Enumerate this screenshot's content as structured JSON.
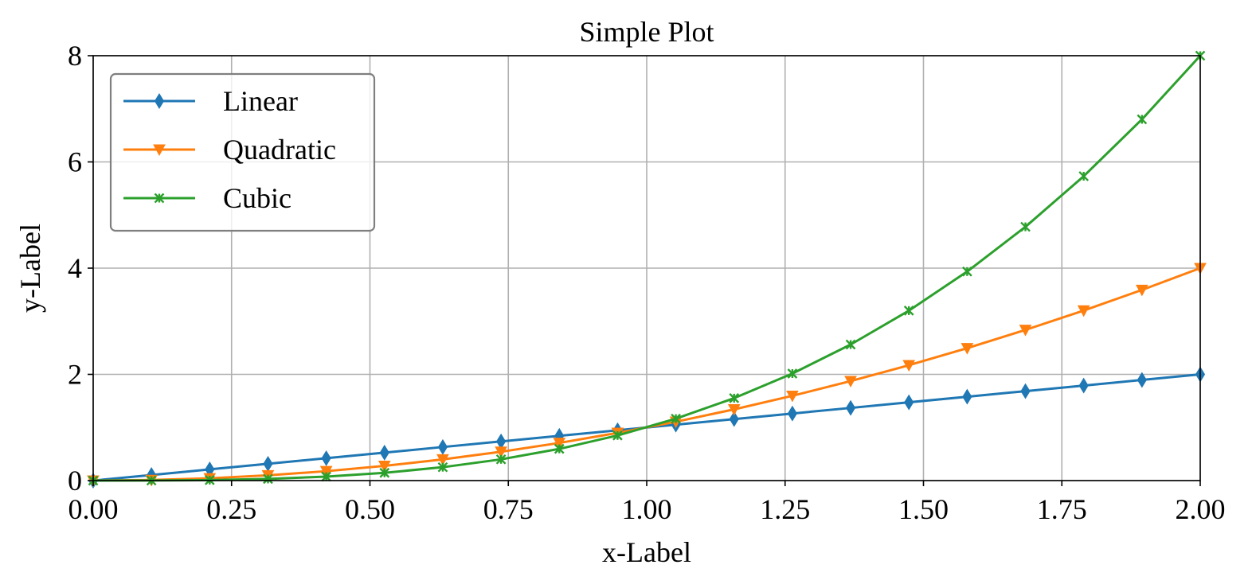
{
  "chart_data": {
    "type": "line",
    "title": "Simple Plot",
    "xlabel": "x-Label",
    "ylabel": "y-Label",
    "xlim": [
      0,
      2
    ],
    "ylim": [
      0,
      8
    ],
    "xticks": [
      0,
      0.25,
      0.5,
      0.75,
      1.0,
      1.25,
      1.5,
      1.75,
      2.0
    ],
    "xtick_labels": [
      "0.00",
      "0.25",
      "0.50",
      "0.75",
      "1.00",
      "1.25",
      "1.50",
      "1.75",
      "2.00"
    ],
    "yticks": [
      0,
      2,
      4,
      6,
      8
    ],
    "ytick_labels": [
      "0",
      "2",
      "4",
      "6",
      "8"
    ],
    "grid": true,
    "legend_position": "top-left",
    "x": [
      0,
      0.10526,
      0.21053,
      0.31579,
      0.42105,
      0.52632,
      0.63158,
      0.73684,
      0.84211,
      0.94737,
      1.05263,
      1.15789,
      1.26316,
      1.36842,
      1.47368,
      1.57895,
      1.68421,
      1.78947,
      1.89474,
      2.0
    ],
    "series": [
      {
        "name": "Linear",
        "color": "#1f77b4",
        "marker": "thin-diamond",
        "values": [
          0,
          0.105,
          0.211,
          0.316,
          0.421,
          0.526,
          0.632,
          0.737,
          0.842,
          0.947,
          1.053,
          1.158,
          1.263,
          1.368,
          1.474,
          1.579,
          1.684,
          1.789,
          1.895,
          2.0
        ]
      },
      {
        "name": "Quadratic",
        "color": "#ff7f0e",
        "marker": "triangle-down",
        "values": [
          0,
          0.011,
          0.044,
          0.1,
          0.177,
          0.277,
          0.399,
          0.543,
          0.709,
          0.898,
          1.108,
          1.341,
          1.596,
          1.873,
          2.172,
          2.493,
          2.837,
          3.202,
          3.59,
          4.0
        ]
      },
      {
        "name": "Cubic",
        "color": "#2ca02c",
        "marker": "x-star",
        "values": [
          0,
          0.001,
          0.009,
          0.031,
          0.075,
          0.146,
          0.252,
          0.4,
          0.597,
          0.85,
          1.166,
          1.552,
          2.015,
          2.562,
          3.2,
          3.936,
          4.778,
          5.731,
          6.802,
          8.0
        ]
      }
    ]
  }
}
